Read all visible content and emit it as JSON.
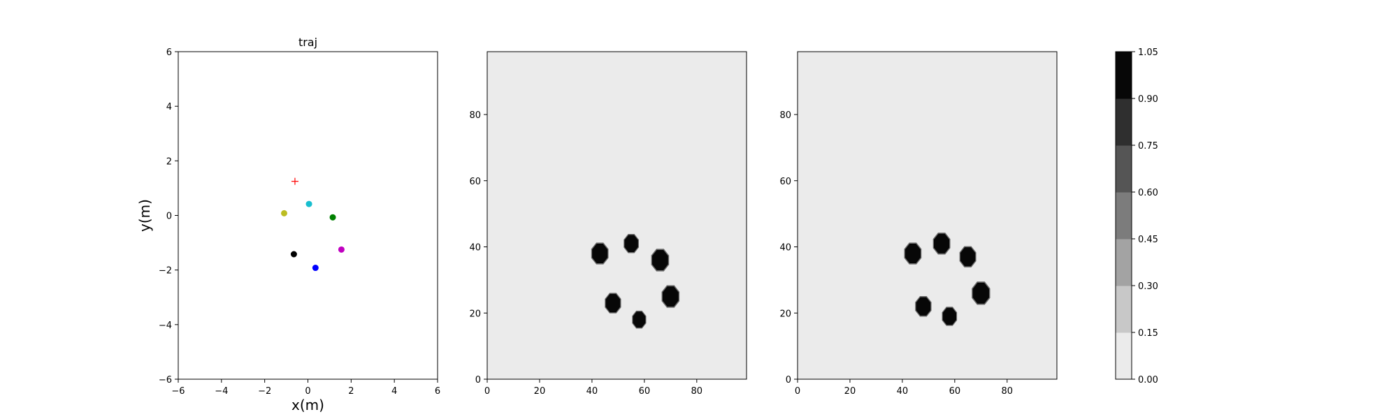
{
  "chart_data": [
    {
      "type": "scatter",
      "title": "traj",
      "xlabel": "x(m)",
      "ylabel": "y(m)",
      "xlim": [
        -6,
        6
      ],
      "ylim": [
        -6,
        6
      ],
      "xticks": [
        "−6",
        "−4",
        "−2",
        "0",
        "2",
        "4",
        "6"
      ],
      "yticks": [
        "−6",
        "−4",
        "−2",
        "0",
        "2",
        "4",
        "6"
      ],
      "grid": false,
      "points": [
        {
          "x": -0.6,
          "y": 1.25,
          "color": "#ff0000",
          "marker": "plus"
        },
        {
          "x": 0.05,
          "y": 0.42,
          "color": "#17becf",
          "marker": "circle"
        },
        {
          "x": -1.1,
          "y": 0.08,
          "color": "#bcbd22",
          "marker": "circle"
        },
        {
          "x": 1.15,
          "y": -0.07,
          "color": "#008000",
          "marker": "circle"
        },
        {
          "x": 1.55,
          "y": -1.25,
          "color": "#c000c0",
          "marker": "circle"
        },
        {
          "x": -0.65,
          "y": -1.42,
          "color": "#000000",
          "marker": "circle"
        },
        {
          "x": 0.35,
          "y": -1.92,
          "color": "#0000ff",
          "marker": "circle"
        }
      ]
    },
    {
      "type": "heatmap",
      "xlim": [
        0,
        99
      ],
      "ylim": [
        0,
        99
      ],
      "xticks": [
        "0",
        "20",
        "40",
        "60",
        "80"
      ],
      "yticks": [
        "0",
        "20",
        "40",
        "60",
        "80"
      ],
      "background_value": 0.05,
      "blobs": [
        {
          "x": 43,
          "y": 38,
          "r": 3.2,
          "value": 1.0
        },
        {
          "x": 55,
          "y": 41,
          "r": 2.8,
          "value": 1.0
        },
        {
          "x": 66,
          "y": 36,
          "r": 3.3,
          "value": 1.0
        },
        {
          "x": 48,
          "y": 23,
          "r": 3.0,
          "value": 1.0
        },
        {
          "x": 70,
          "y": 25,
          "r": 3.3,
          "value": 1.0
        },
        {
          "x": 58,
          "y": 18,
          "r": 2.6,
          "value": 1.0
        }
      ]
    },
    {
      "type": "heatmap",
      "xlim": [
        0,
        99
      ],
      "ylim": [
        0,
        99
      ],
      "xticks": [
        "0",
        "20",
        "40",
        "60",
        "80"
      ],
      "yticks": [
        "0",
        "20",
        "40",
        "60",
        "80"
      ],
      "background_value": 0.05,
      "blobs": [
        {
          "x": 44,
          "y": 38,
          "r": 3.2,
          "value": 1.0
        },
        {
          "x": 55,
          "y": 41,
          "r": 3.2,
          "value": 1.0
        },
        {
          "x": 65,
          "y": 37,
          "r": 3.1,
          "value": 1.0
        },
        {
          "x": 48,
          "y": 22,
          "r": 3.0,
          "value": 1.0
        },
        {
          "x": 70,
          "y": 26,
          "r": 3.4,
          "value": 1.0
        },
        {
          "x": 58,
          "y": 19,
          "r": 2.8,
          "value": 1.0
        }
      ]
    }
  ],
  "colorbar": {
    "ticks": [
      "0.00",
      "0.15",
      "0.30",
      "0.45",
      "0.60",
      "0.75",
      "0.90",
      "1.05"
    ],
    "levels": [
      "#ebebeb",
      "#c8c8c8",
      "#a3a3a3",
      "#7c7c7c",
      "#555555",
      "#2f2f2f",
      "#070707"
    ]
  }
}
